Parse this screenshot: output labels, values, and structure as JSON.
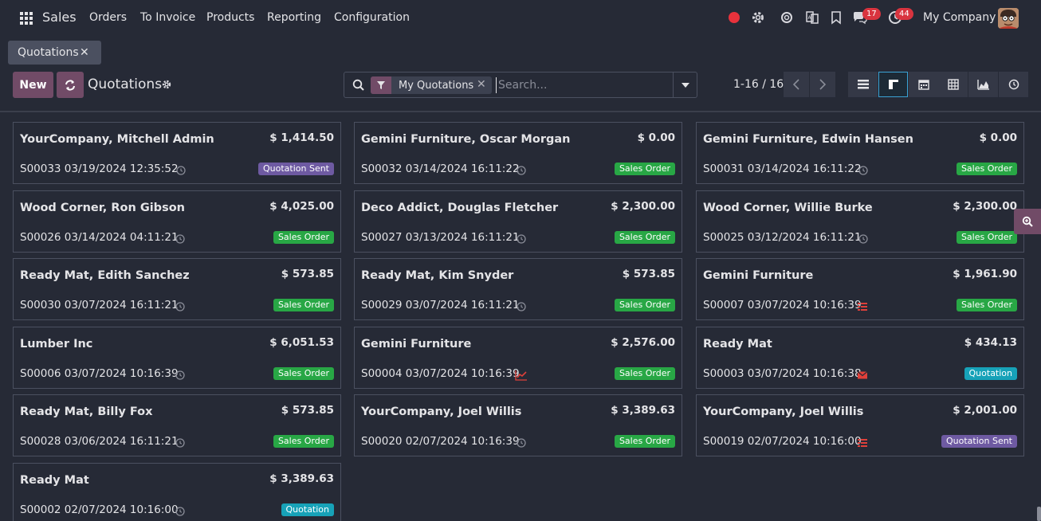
{
  "app": {
    "name": "Sales"
  },
  "menu": [
    "Orders",
    "To Invoice",
    "Products",
    "Reporting",
    "Configuration"
  ],
  "systray": {
    "messages_count": "17",
    "activities_count": "44",
    "company": "My Company"
  },
  "breadcrumb": {
    "label": "Quotations"
  },
  "control": {
    "new_label": "New",
    "title": "Quotations",
    "facet": "My Quotations",
    "search_placeholder": "Search...",
    "pager": "1-16 / 16"
  },
  "colors": {
    "accent": "#714b67",
    "sales_order": "#28a745",
    "quotation_sent": "#6e5aa2",
    "quotation": "#17a2b8",
    "bg": "#262a36"
  },
  "cards": [
    {
      "name": "YourCompany, Mitchell Admin",
      "amount": "$ 1,414.50",
      "ref": "S00033 03/19/2024 12:35:52",
      "activity": "clock",
      "status": "Quotation Sent",
      "status_type": "sent"
    },
    {
      "name": "Gemini Furniture, Oscar Morgan",
      "amount": "$ 0.00",
      "ref": "S00032 03/14/2024 16:11:22",
      "activity": "clock",
      "status": "Sales Order",
      "status_type": "order"
    },
    {
      "name": "Gemini Furniture, Edwin Hansen",
      "amount": "$ 0.00",
      "ref": "S00031 03/14/2024 16:11:22",
      "activity": "clock",
      "status": "Sales Order",
      "status_type": "order"
    },
    {
      "name": "Wood Corner, Ron Gibson",
      "amount": "$ 4,025.00",
      "ref": "S00026 03/14/2024 04:11:21",
      "activity": "clock",
      "status": "Sales Order",
      "status_type": "order"
    },
    {
      "name": "Deco Addict, Douglas Fletcher",
      "amount": "$ 2,300.00",
      "ref": "S00027 03/13/2024 16:11:21",
      "activity": "clock",
      "status": "Sales Order",
      "status_type": "order"
    },
    {
      "name": "Wood Corner, Willie Burke",
      "amount": "$ 2,300.00",
      "ref": "S00025 03/12/2024 16:11:21",
      "activity": "clock",
      "status": "Sales Order",
      "status_type": "order"
    },
    {
      "name": "Ready Mat, Edith Sanchez",
      "amount": "$ 573.85",
      "ref": "S00030 03/07/2024 16:11:21",
      "activity": "clock",
      "status": "Sales Order",
      "status_type": "order"
    },
    {
      "name": "Ready Mat, Kim Snyder",
      "amount": "$ 573.85",
      "ref": "S00029 03/07/2024 16:11:21",
      "activity": "clock",
      "status": "Sales Order",
      "status_type": "order"
    },
    {
      "name": "Gemini Furniture",
      "amount": "$ 1,961.90",
      "ref": "S00007 03/07/2024 10:16:39",
      "activity": "tasks",
      "status": "Sales Order",
      "status_type": "order"
    },
    {
      "name": "Lumber Inc",
      "amount": "$ 6,051.53",
      "ref": "S00006 03/07/2024 10:16:39",
      "activity": "clock",
      "status": "Sales Order",
      "status_type": "order"
    },
    {
      "name": "Gemini Furniture",
      "amount": "$ 2,576.00",
      "ref": "S00004 03/07/2024 10:16:39",
      "activity": "chart",
      "status": "Sales Order",
      "status_type": "order"
    },
    {
      "name": "Ready Mat",
      "amount": "$ 434.13",
      "ref": "S00003 03/07/2024 10:16:38",
      "activity": "mail",
      "status": "Quotation",
      "status_type": "quot"
    },
    {
      "name": "Ready Mat, Billy Fox",
      "amount": "$ 573.85",
      "ref": "S00028 03/06/2024 16:11:21",
      "activity": "clock",
      "status": "Sales Order",
      "status_type": "order"
    },
    {
      "name": "YourCompany, Joel Willis",
      "amount": "$ 3,389.63",
      "ref": "S00020 02/07/2024 10:16:39",
      "activity": "clock",
      "status": "Sales Order",
      "status_type": "order"
    },
    {
      "name": "YourCompany, Joel Willis",
      "amount": "$ 2,001.00",
      "ref": "S00019 02/07/2024 10:16:00",
      "activity": "tasks",
      "status": "Quotation Sent",
      "status_type": "sent"
    },
    {
      "name": "Ready Mat",
      "amount": "$ 3,389.63",
      "ref": "S00002 02/07/2024 10:16:00",
      "activity": "clock",
      "status": "Quotation",
      "status_type": "quot"
    }
  ]
}
